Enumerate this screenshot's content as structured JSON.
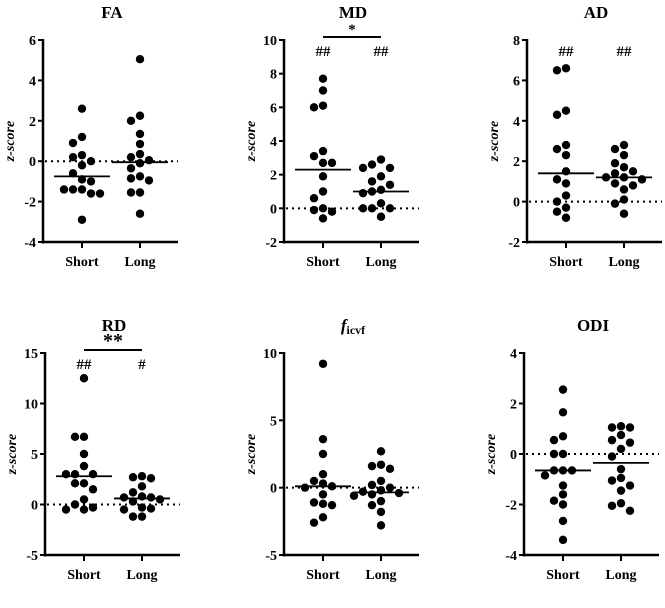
{
  "chart_data": [
    {
      "type": "scatter",
      "title": "FA",
      "ylabel": "z-score",
      "categories": [
        "Short",
        "Long"
      ],
      "ylim": [
        -4,
        6
      ],
      "yticks": [
        -4,
        -2,
        0,
        2,
        4,
        6
      ],
      "series": [
        {
          "name": "Short",
          "values": [
            2.6,
            1.2,
            0.9,
            0.3,
            0.2,
            0,
            -0.2,
            -0.6,
            -0.9,
            -1.0,
            -1.4,
            -1.4,
            -1.6,
            -1.6,
            -1.4,
            -2.9
          ],
          "mean": -0.75
        },
        {
          "name": "Long",
          "values": [
            5.05,
            2.25,
            2.0,
            1.35,
            0.85,
            0.35,
            0.2,
            0.05,
            -0.1,
            -0.35,
            -0.75,
            -0.85,
            -0.95,
            -1.55,
            -1.55,
            -2.6
          ],
          "mean": -0.05
        }
      ],
      "annotations": {
        "short": "",
        "long": "",
        "between": ""
      }
    },
    {
      "type": "scatter",
      "title": "MD",
      "ylabel": "z-score",
      "categories": [
        "Short",
        "Long"
      ],
      "ylim": [
        -2,
        10
      ],
      "yticks": [
        -2,
        0,
        2,
        4,
        6,
        8,
        10
      ],
      "series": [
        {
          "name": "Short",
          "values": [
            7.7,
            7.0,
            6.1,
            6.0,
            3.4,
            3.1,
            2.7,
            2.7,
            1.9,
            1.0,
            0.6,
            0,
            -0.1,
            -0.2,
            -0.6
          ],
          "mean": 2.3
        },
        {
          "name": "Long",
          "values": [
            2.9,
            2.6,
            2.4,
            2.4,
            1.9,
            1.6,
            1.4,
            1.1,
            1.0,
            0.9,
            0.3,
            0.0,
            0.0,
            0.0,
            -0.5
          ],
          "mean": 1.0
        }
      ],
      "annotations": {
        "short": "##",
        "long": "##",
        "between": "*"
      }
    },
    {
      "type": "scatter",
      "title": "AD",
      "ylabel": "z-score",
      "categories": [
        "Short",
        "Long"
      ],
      "ylim": [
        -2,
        8
      ],
      "yticks": [
        -2,
        0,
        2,
        4,
        6,
        8
      ],
      "series": [
        {
          "name": "Short",
          "values": [
            6.6,
            6.5,
            4.5,
            4.3,
            2.8,
            2.6,
            2.3,
            1.5,
            1.1,
            0.9,
            0.3,
            0,
            -0.3,
            -0.5,
            -0.8
          ],
          "mean": 1.4
        },
        {
          "name": "Long",
          "values": [
            2.8,
            2.6,
            2.3,
            1.9,
            1.7,
            1.5,
            1.4,
            1.2,
            1.2,
            1.1,
            0.9,
            0.8,
            0.6,
            0.1,
            -0.1,
            -0.6
          ],
          "mean": 1.2
        }
      ],
      "annotations": {
        "short": "##",
        "long": "##",
        "between": ""
      }
    },
    {
      "type": "scatter",
      "title": "RD",
      "ylabel": "z-score",
      "categories": [
        "Short",
        "Long"
      ],
      "ylim": [
        -5,
        15
      ],
      "yticks": [
        -5,
        0,
        5,
        10,
        15
      ],
      "series": [
        {
          "name": "Short",
          "values": [
            12.5,
            6.7,
            6.7,
            5.0,
            3.8,
            3.0,
            3.0,
            3.0,
            2.1,
            2.1,
            1.5,
            0.5,
            0,
            -0.3,
            -0.5,
            -0.5
          ],
          "mean": 2.8
        },
        {
          "name": "Long",
          "values": [
            2.8,
            2.7,
            2.6,
            1.8,
            1.2,
            0.8,
            0.7,
            0.7,
            0.5,
            0.3,
            -0.3,
            -0.4,
            -0.5,
            -1.2,
            -1.2
          ],
          "mean": 0.6
        }
      ],
      "annotations": {
        "short": "##",
        "long": "#",
        "between": "**"
      }
    },
    {
      "type": "scatter",
      "title": "f",
      "title_sub": "icvf",
      "ylabel": "z-score",
      "categories": [
        "Short",
        "Long"
      ],
      "ylim": [
        -5,
        10
      ],
      "yticks": [
        -5,
        0,
        5,
        10
      ],
      "series": [
        {
          "name": "Short",
          "values": [
            9.2,
            3.6,
            2.5,
            1.0,
            0.5,
            0.3,
            0.1,
            0,
            -0.5,
            -1.1,
            -1.2,
            -1.3,
            -2.2,
            -2.6
          ],
          "mean": 0.1
        },
        {
          "name": "Long",
          "values": [
            2.7,
            1.7,
            1.6,
            1.4,
            0.5,
            0.2,
            0.0,
            -0.2,
            -0.3,
            -0.4,
            -0.5,
            -0.6,
            -1.0,
            -1.3,
            -1.8,
            -2.8
          ],
          "mean": -0.35
        }
      ],
      "annotations": {
        "short": "",
        "long": "",
        "between": ""
      }
    },
    {
      "type": "scatter",
      "title": "ODI",
      "ylabel": "z-score",
      "categories": [
        "Short",
        "Long"
      ],
      "ylim": [
        -4,
        4
      ],
      "yticks": [
        -4,
        -2,
        0,
        2,
        4
      ],
      "series": [
        {
          "name": "Short",
          "values": [
            2.55,
            1.65,
            0.7,
            0.55,
            0,
            0,
            -0.65,
            -0.65,
            -0.65,
            -0.85,
            -1.25,
            -1.6,
            -1.85,
            -2.0,
            -2.65,
            -3.4
          ],
          "mean": -0.65
        },
        {
          "name": "Long",
          "values": [
            1.1,
            1.05,
            1.05,
            0.75,
            0.55,
            0.45,
            0.2,
            -0.1,
            -0.6,
            -0.95,
            -1.05,
            -1.25,
            -1.45,
            -1.95,
            -2.05,
            -2.25
          ],
          "mean": -0.35
        }
      ],
      "annotations": {
        "short": "",
        "long": "",
        "between": ""
      }
    }
  ]
}
